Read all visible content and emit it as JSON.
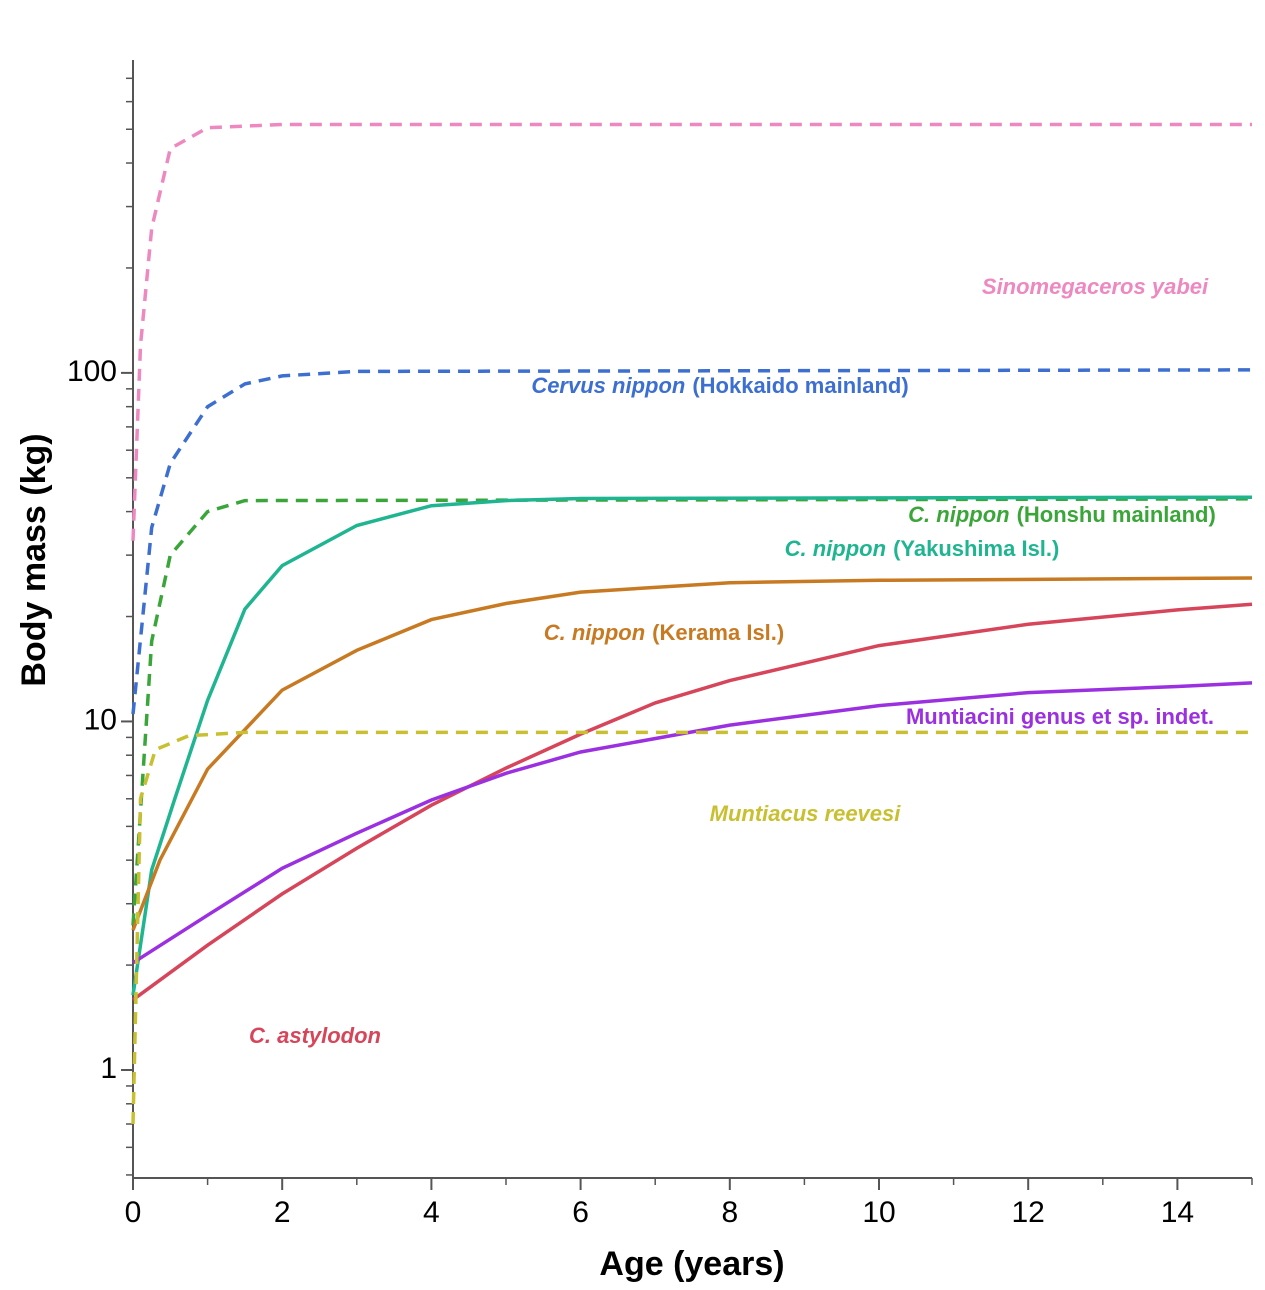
{
  "chart_data": {
    "type": "line",
    "x_label": "Age (years)",
    "y_label": "Body mass (kg)",
    "log_y": true,
    "xlim": [
      0,
      15
    ],
    "xticks": [
      0,
      2,
      4,
      6,
      8,
      10,
      12,
      14
    ],
    "xminorticks": [
      1,
      3,
      5,
      7,
      9,
      11,
      13,
      15
    ],
    "ylim": [
      0.49,
      790
    ],
    "yticks": [
      1,
      10,
      100
    ],
    "yminorticks": [
      0.5,
      0.6,
      0.7,
      0.8,
      0.9,
      2,
      3,
      4,
      5,
      6,
      7,
      8,
      9,
      20,
      30,
      40,
      50,
      60,
      70,
      80,
      90,
      200,
      300,
      400,
      500,
      600,
      700
    ],
    "series": [
      {
        "name": "Sinomegaceros yabei",
        "italic": true,
        "color": "#ee88c0",
        "dash": true,
        "x": [
          0,
          0.1,
          0.25,
          0.5,
          1,
          2,
          15
        ],
        "values": [
          33,
          120,
          260,
          440,
          505,
          516,
          516
        ]
      },
      {
        "name": "Cervus nippon",
        "locality": "(Hokkaido mainland)",
        "italic": true,
        "color": "#3d6fd1",
        "dash": true,
        "x": [
          0,
          0.25,
          0.5,
          1,
          1.5,
          2,
          3,
          15
        ],
        "values": [
          10.5,
          36,
          55,
          80,
          93,
          98,
          101,
          102
        ]
      },
      {
        "name": "C. nippon",
        "locality": "(Honshu mainland)",
        "italic": true,
        "color": "#3aa63a",
        "dash": true,
        "x": [
          0,
          0.25,
          0.5,
          1,
          1.5,
          15
        ],
        "values": [
          2.6,
          17,
          30,
          40,
          43,
          43.5
        ]
      },
      {
        "name": "C. nippon",
        "locality": "(Yakushima Isl.)",
        "italic": true,
        "color": "#1fb591",
        "dash": false,
        "x": [
          0,
          0.25,
          0.56,
          1,
          1.5,
          2,
          3,
          4,
          5,
          6,
          15
        ],
        "values": [
          1.64,
          3.75,
          6,
          11.5,
          21,
          28,
          36.5,
          41.6,
          43,
          43.6,
          44
        ]
      },
      {
        "name": "C. nippon",
        "locality": "(Kerama Isl.)",
        "italic": true,
        "color": "#c87a22",
        "dash": false,
        "x": [
          0,
          0.36,
          1,
          2,
          3,
          4,
          5,
          6,
          8,
          10,
          15
        ],
        "values": [
          2.52,
          4,
          7.3,
          12.3,
          16,
          19.6,
          21.8,
          23.5,
          25,
          25.4,
          25.8
        ]
      },
      {
        "name": "C. astylodon",
        "italic": true,
        "color": "#d6455a",
        "dash": false,
        "x": [
          0,
          1,
          2,
          3,
          4,
          5,
          6,
          7,
          8,
          10,
          12,
          14,
          15
        ],
        "values": [
          1.59,
          2.28,
          3.2,
          4.33,
          5.75,
          7.35,
          9.2,
          11.3,
          13.1,
          16.5,
          19,
          20.9,
          21.7
        ]
      },
      {
        "name": "Muntiacini genus et sp. indet.",
        "italic": false,
        "color": "#9b30e0",
        "dash": false,
        "x": [
          0,
          1,
          2,
          3,
          4,
          5,
          6,
          8,
          10,
          12,
          14,
          15
        ],
        "values": [
          2.03,
          2.78,
          3.79,
          4.78,
          5.95,
          7.1,
          8.17,
          9.76,
          11.1,
          12.1,
          12.6,
          12.9
        ]
      },
      {
        "name": "Muntiacus reevesi",
        "italic": true,
        "color": "#c8c030",
        "dash": true,
        "x": [
          0,
          0.1,
          0.3,
          0.75,
          1.5,
          15
        ],
        "values": [
          0.7,
          6,
          8.3,
          9.1,
          9.3,
          9.3
        ]
      }
    ]
  }
}
